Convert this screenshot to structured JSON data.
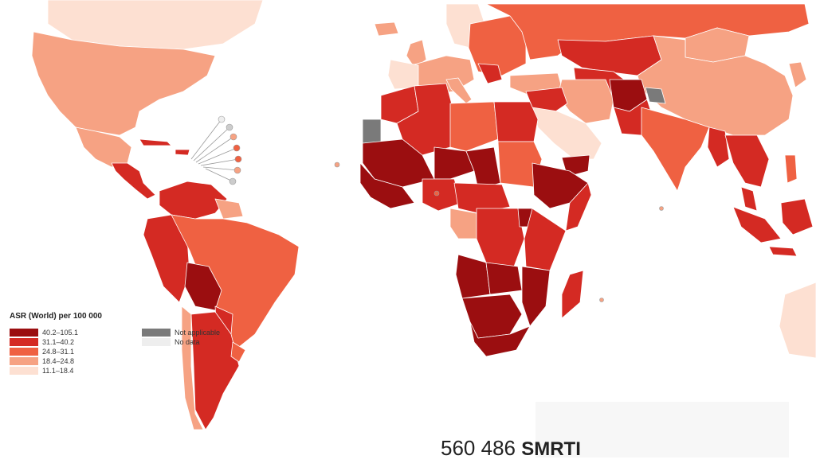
{
  "legend": {
    "title": "ASR (World) per 100 000",
    "classes": [
      {
        "label": "40.2–105.1",
        "color": "#9b0e10"
      },
      {
        "label": "31.1–40.2",
        "color": "#d42a23"
      },
      {
        "label": "24.8–31.1",
        "color": "#ef6142"
      },
      {
        "label": "18.4–24.8",
        "color": "#f6a283"
      },
      {
        "label": "11.1–18.4",
        "color": "#fde0d2"
      }
    ],
    "special": [
      {
        "label": "Not applicable",
        "color": "#7a7a7a"
      },
      {
        "label": "No data",
        "color": "#eeeeee"
      }
    ]
  },
  "caption": {
    "number": "560 486",
    "brand": "SMRTI"
  }
}
